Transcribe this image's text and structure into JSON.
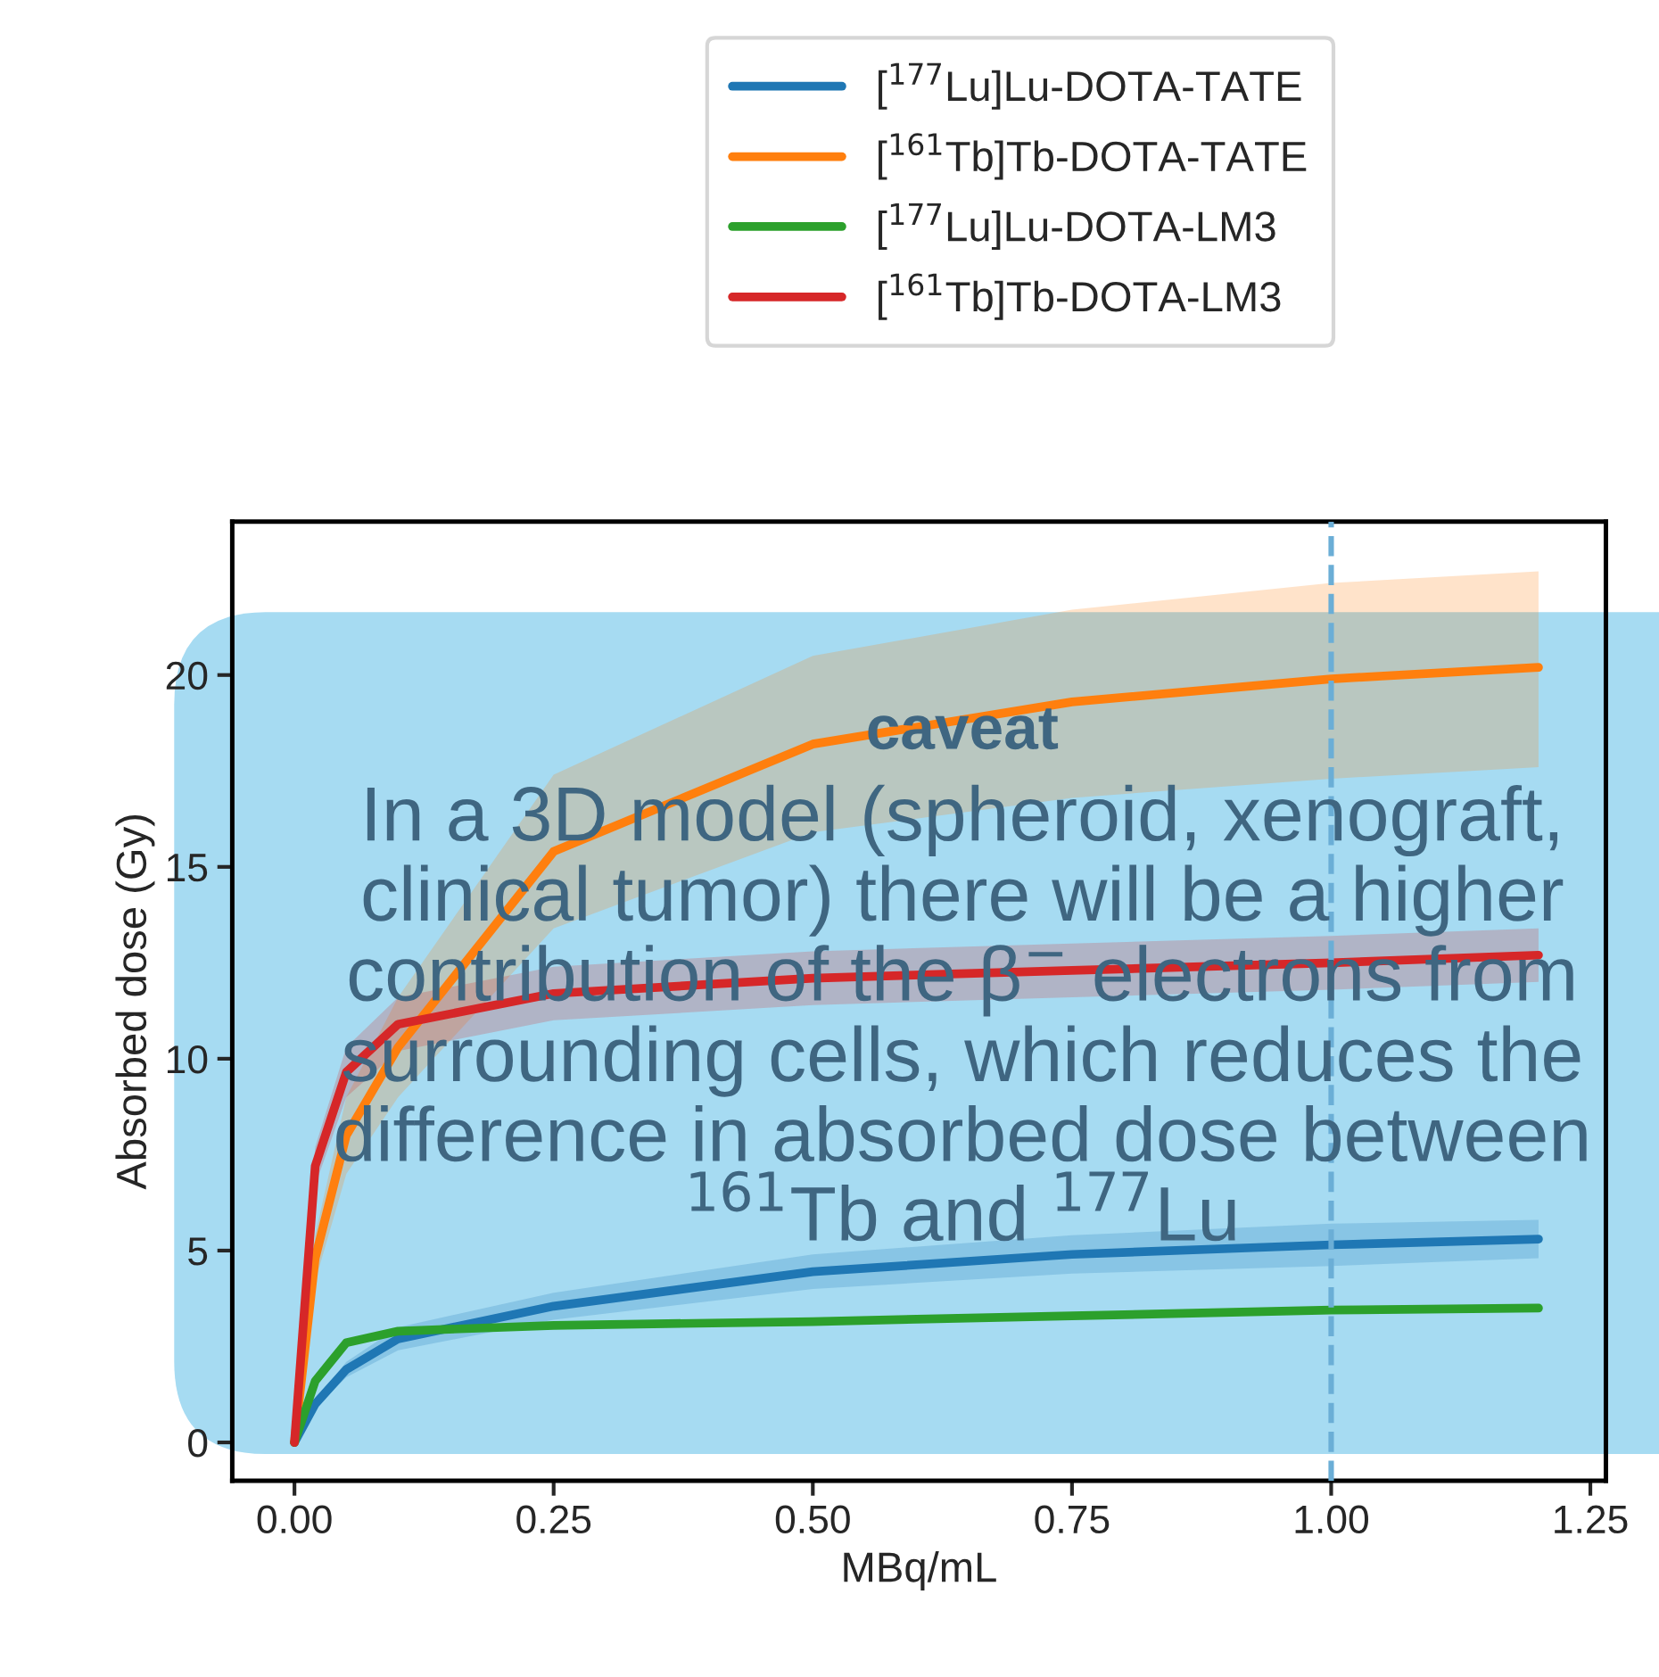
{
  "chart_data": {
    "type": "line",
    "xlabel": "MBq/mL",
    "ylabel": "Absorbed dose (Gy)",
    "x": [
      0,
      0.02,
      0.05,
      0.1,
      0.25,
      0.5,
      0.75,
      1.0,
      1.2
    ],
    "series": [
      {
        "name": "[$^{177}$Lu]Lu-DOTA-TATE",
        "color": "#1f77b4",
        "values": [
          0,
          1.0,
          1.9,
          2.7,
          3.55,
          4.45,
          4.9,
          5.15,
          5.3
        ],
        "lower": [
          0,
          0.9,
          1.7,
          2.4,
          3.2,
          4.0,
          4.4,
          4.6,
          4.8
        ],
        "upper": [
          0,
          1.1,
          2.1,
          3.0,
          3.9,
          4.9,
          5.4,
          5.7,
          5.8
        ]
      },
      {
        "name": "[$^{161}$Tb]Tb-DOTA-TATE",
        "color": "#ff7f0e",
        "values": [
          0,
          4.8,
          8.0,
          10.3,
          15.4,
          18.2,
          19.3,
          19.9,
          20.2
        ],
        "lower": [
          0,
          4.2,
          7.0,
          9.0,
          13.4,
          15.9,
          16.8,
          17.3,
          17.6
        ],
        "upper": [
          0,
          5.4,
          9.0,
          11.6,
          17.4,
          20.5,
          21.7,
          22.4,
          22.7
        ]
      },
      {
        "name": "[$^{177}$Lu]Lu-DOTA-LM3",
        "color": "#2ca02c",
        "values": [
          0,
          1.6,
          2.6,
          2.9,
          3.05,
          3.15,
          3.3,
          3.45,
          3.5
        ]
      },
      {
        "name": "[$^{161}$Tb]Tb-DOTA-LM3",
        "color": "#d62728",
        "values": [
          0,
          7.2,
          9.65,
          10.9,
          11.7,
          12.1,
          12.3,
          12.5,
          12.7
        ],
        "lower": [
          0,
          6.7,
          9.0,
          10.2,
          11.0,
          11.4,
          11.6,
          11.8,
          12.0
        ],
        "upper": [
          0,
          7.7,
          10.3,
          11.6,
          12.4,
          12.8,
          13.0,
          13.2,
          13.4
        ]
      }
    ],
    "xlim": [
      -0.06,
      1.265
    ],
    "ylim": [
      -1.0,
      24
    ],
    "xticks": [
      {
        "value": 0,
        "label": "0.00"
      },
      {
        "value": 0.25,
        "label": "0.25"
      },
      {
        "value": 0.5,
        "label": "0.50"
      },
      {
        "value": 0.75,
        "label": "0.75"
      },
      {
        "value": 1.0,
        "label": "1.00"
      },
      {
        "value": 1.25,
        "label": "1.25"
      }
    ],
    "yticks": [
      0,
      5,
      10,
      15,
      20
    ],
    "ref_lines": [
      {
        "axis": "x",
        "value": 1.0,
        "color": "#6baed6",
        "line_style": "dashed"
      }
    ],
    "legend": "top",
    "grid": false,
    "annotations": [
      "caveat",
      "In a 3D model (spheroid, xenograft, clinical tumor) there will be a higher contribution of the β$^{−}$ electrons from surrounding cells, which reduces the difference in absorbed dose between $^{161}$Tb and $^{177}$Lu"
    ]
  }
}
